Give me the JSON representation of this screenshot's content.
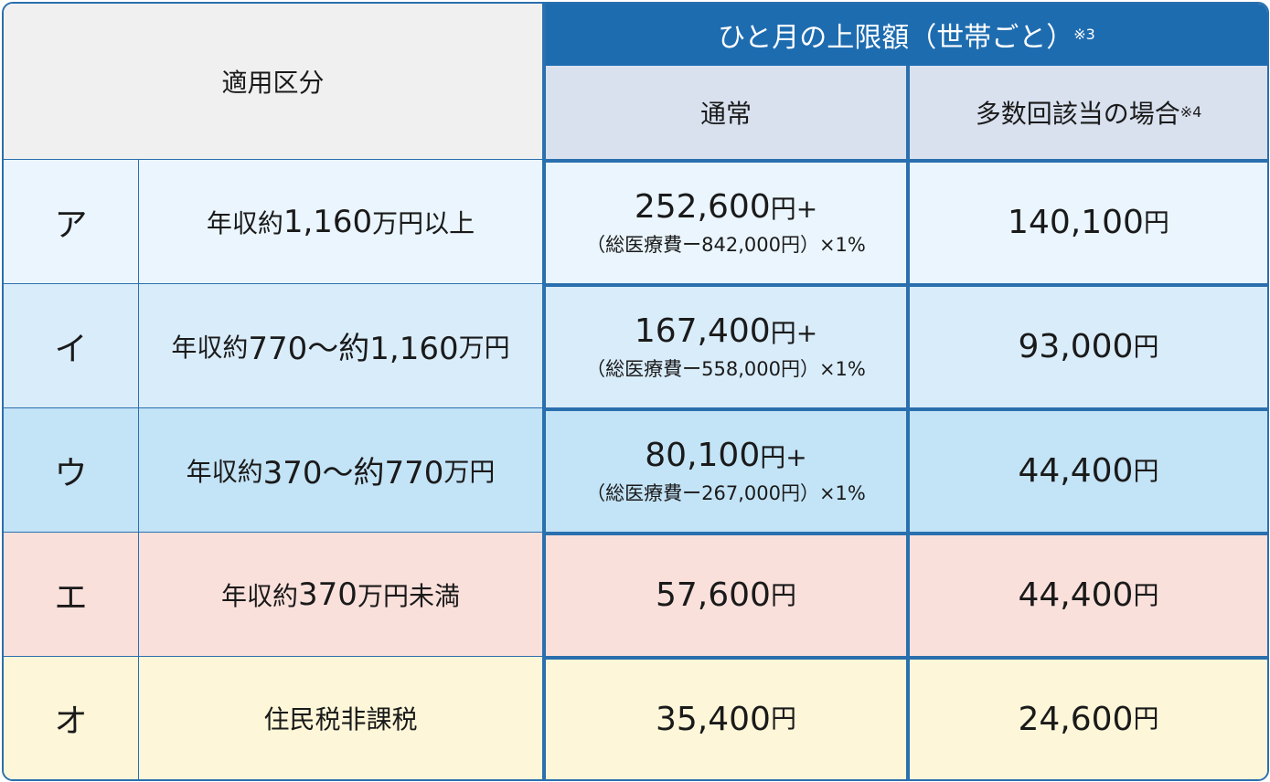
{
  "header": {
    "category_title": "適用区分",
    "limit_title": "ひと月の上限額（世帯ごと）",
    "limit_note": "※3",
    "normal": "通常",
    "multiple": "多数回該当の場合",
    "multiple_note": "※4"
  },
  "rows": [
    {
      "letter": "ア",
      "cat_pre": "年収約",
      "cat_num": "1,160",
      "cat_post": "万円以上",
      "normal_amount": "252,600",
      "normal_suffix": "円+",
      "normal_formula": "（総医療費ー842,000円）×1%",
      "multiple_amount": "140,100",
      "multiple_suffix": "円"
    },
    {
      "letter": "イ",
      "cat_pre": "年収約",
      "cat_num": "770～約1,160",
      "cat_post": "万円",
      "normal_amount": "167,400",
      "normal_suffix": "円+",
      "normal_formula": "（総医療費ー558,000円）×1%",
      "multiple_amount": "93,000",
      "multiple_suffix": "円"
    },
    {
      "letter": "ウ",
      "cat_pre": "年収約",
      "cat_num": "370～約770",
      "cat_post": "万円",
      "normal_amount": "80,100",
      "normal_suffix": "円+",
      "normal_formula": "（総医療費ー267,000円）×1%",
      "multiple_amount": "44,400",
      "multiple_suffix": "円"
    },
    {
      "letter": "エ",
      "cat_pre": "年収約",
      "cat_num": "370",
      "cat_post": "万円未満",
      "normal_amount": "57,600",
      "normal_suffix": "円",
      "multiple_amount": "44,400",
      "multiple_suffix": "円"
    },
    {
      "letter": "オ",
      "cat_pre": "住民税非課税",
      "normal_amount": "35,400",
      "normal_suffix": "円",
      "multiple_amount": "24,600",
      "multiple_suffix": "円"
    }
  ]
}
